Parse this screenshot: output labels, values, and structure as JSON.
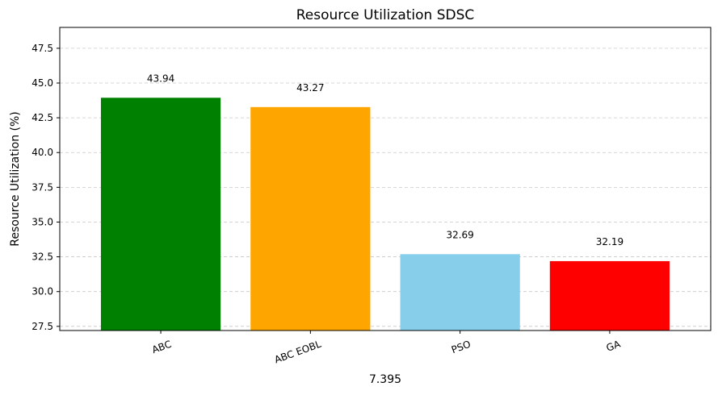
{
  "chart_data": {
    "type": "bar",
    "title": "Resource Utilization SDSC",
    "xlabel": "7.395",
    "ylabel": "Resource Utilization (%)",
    "categories": [
      "ABC",
      "ABC EOBL",
      "PSO",
      "GA"
    ],
    "values": [
      43.94,
      43.27,
      32.69,
      32.19
    ],
    "value_labels": [
      "43.94",
      "43.27",
      "32.69",
      "32.19"
    ],
    "colors": [
      "#008000",
      "#FFA500",
      "#87CEEB",
      "#FF0000"
    ],
    "ylim": [
      27.2,
      49.0
    ],
    "yticks": [
      27.5,
      30.0,
      32.5,
      35.0,
      37.5,
      40.0,
      42.5,
      45.0,
      47.5
    ],
    "ytick_labels": [
      "27.5",
      "30.0",
      "32.5",
      "35.0",
      "37.5",
      "40.0",
      "42.5",
      "45.0",
      "47.5"
    ],
    "grid": "y-dashed",
    "xtick_rotation": "rotated"
  }
}
